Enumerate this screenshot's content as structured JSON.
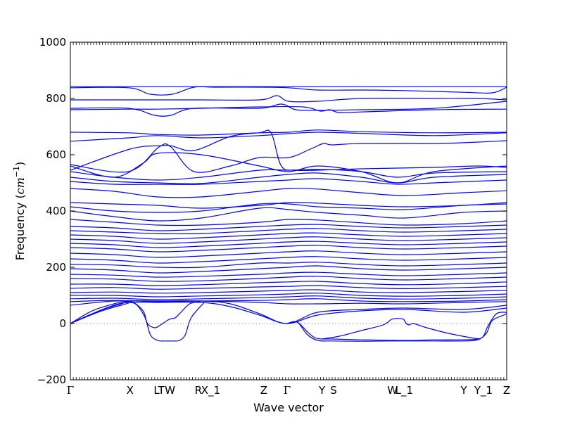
{
  "chart_data": {
    "type": "line",
    "xlabel": "Wave vector",
    "ylabel": "Frequency",
    "ylabel_unit_base": "cm",
    "ylabel_unit_exp": "−1",
    "ylim": [
      -200,
      1000
    ],
    "yticks": [
      -200,
      0,
      200,
      400,
      600,
      800,
      1000
    ],
    "xlim": [
      0,
      30
    ],
    "grid": false,
    "zero_line": {
      "y": 0,
      "style": "dotted"
    },
    "series_color": "#0000ff",
    "high_symmetry_points": [
      {
        "label": "Γ",
        "x": 0
      },
      {
        "label": "X",
        "x": 4.1
      },
      {
        "label": "LT",
        "x": 6.1
      },
      {
        "label": "W",
        "x": 6.85
      },
      {
        "label": "R",
        "x": 8.8
      },
      {
        "label": "X_1",
        "x": 9.65
      },
      {
        "label": "Z",
        "x": 13.3
      },
      {
        "label": "Γ",
        "x": 14.9
      },
      {
        "label": "Y",
        "x": 17.3
      },
      {
        "label": "S",
        "x": 18.1
      },
      {
        "label": "W",
        "x": 22.15
      },
      {
        "label": "L_1",
        "x": 22.95
      },
      {
        "label": "Y",
        "x": 27.05
      },
      {
        "label": "Y_1",
        "x": 28.4
      },
      {
        "label": "Z",
        "x": 30
      }
    ],
    "series": [
      {
        "x": [
          0,
          4,
          6,
          9,
          13,
          15,
          17,
          20,
          23,
          27,
          30
        ],
        "y": [
          842,
          842,
          842,
          842,
          842,
          842,
          842,
          842,
          842,
          842,
          842
        ]
      },
      {
        "x": [
          0,
          4,
          5.5,
          7,
          8.5,
          10,
          13,
          15,
          17,
          20,
          23,
          27,
          29,
          30
        ],
        "y": [
          838,
          838,
          815,
          815,
          840,
          840,
          840,
          838,
          830,
          830,
          828,
          822,
          820,
          840
        ]
      },
      {
        "x": [
          0,
          4,
          6,
          9,
          13,
          14.2,
          15,
          17,
          20,
          25,
          28,
          30
        ],
        "y": [
          795,
          795,
          795,
          795,
          795,
          810,
          790,
          790,
          800,
          800,
          800,
          795
        ]
      },
      {
        "x": [
          0,
          4,
          5.8,
          6.9,
          8.5,
          13,
          14.5,
          15.5,
          17,
          20,
          25,
          30
        ],
        "y": [
          765,
          765,
          740,
          740,
          765,
          765,
          780,
          760,
          758,
          760,
          765,
          790
        ]
      },
      {
        "x": [
          0,
          4,
          6,
          9,
          13,
          16,
          17.2,
          17.8,
          18.5,
          20,
          25,
          30
        ],
        "y": [
          760,
          762,
          762,
          765,
          770,
          770,
          755,
          760,
          750,
          752,
          760,
          762
        ]
      },
      {
        "x": [
          0,
          4,
          6,
          9,
          13,
          15,
          17,
          20,
          25,
          30
        ],
        "y": [
          680,
          678,
          672,
          670,
          678,
          680,
          688,
          682,
          678,
          680
        ]
      },
      {
        "x": [
          0,
          4,
          6,
          9,
          13,
          15,
          17,
          20,
          25,
          30
        ],
        "y": [
          648,
          660,
          668,
          660,
          668,
          675,
          680,
          676,
          668,
          678
        ]
      },
      {
        "x": [
          0,
          4.1,
          6.1,
          6.9,
          8.5,
          11,
          13,
          13.8,
          14.5,
          15.5,
          17,
          20,
          25,
          28,
          30
        ],
        "y": [
          545,
          620,
          632,
          632,
          615,
          665,
          678,
          678,
          560,
          545,
          545,
          550,
          555,
          560,
          555
        ]
      },
      {
        "x": [
          0,
          4,
          6.1,
          6.9,
          8.5,
          11,
          13,
          15,
          16.5,
          17.4,
          18,
          20,
          25,
          28,
          30
        ],
        "y": [
          565,
          540,
          628,
          628,
          540,
          560,
          590,
          590,
          620,
          640,
          635,
          640,
          640,
          645,
          650
        ]
      },
      {
        "x": [
          0,
          3,
          5,
          6,
          9,
          13,
          15,
          17,
          20,
          22.5,
          25,
          30
        ],
        "y": [
          560,
          520,
          570,
          605,
          600,
          560,
          540,
          560,
          540,
          500,
          540,
          560
        ]
      },
      {
        "x": [
          0,
          3,
          6,
          9,
          13,
          15,
          17,
          20,
          22.5,
          25,
          30
        ],
        "y": [
          540,
          520,
          510,
          520,
          545,
          545,
          548,
          540,
          520,
          535,
          540
        ]
      },
      {
        "x": [
          0,
          3,
          6,
          9,
          13,
          15,
          17,
          20,
          22.5,
          25,
          30
        ],
        "y": [
          520,
          505,
          500,
          498,
          520,
          530,
          535,
          520,
          500,
          520,
          530
        ]
      },
      {
        "x": [
          0,
          3,
          6,
          9,
          13,
          15,
          17,
          20,
          22.5,
          25,
          30
        ],
        "y": [
          505,
          495,
          495,
          495,
          505,
          510,
          515,
          505,
          495,
          500,
          510
        ]
      },
      {
        "x": [
          0,
          3,
          6,
          9,
          13,
          15,
          17,
          20,
          23,
          27,
          30
        ],
        "y": [
          480,
          470,
          450,
          450,
          470,
          480,
          478,
          465,
          455,
          465,
          472
        ]
      },
      {
        "x": [
          0,
          3,
          6,
          9,
          13,
          15,
          17,
          20,
          23,
          27,
          30
        ],
        "y": [
          430,
          425,
          420,
          410,
          420,
          430,
          428,
          420,
          415,
          420,
          430
        ]
      },
      {
        "x": [
          0,
          3,
          6,
          9,
          13,
          15,
          17,
          20,
          23,
          27,
          30
        ],
        "y": [
          415,
          400,
          395,
          400,
          425,
          425,
          415,
          410,
          405,
          420,
          425
        ]
      },
      {
        "x": [
          0,
          3,
          6,
          9,
          13,
          15,
          17,
          20,
          23,
          27,
          30
        ],
        "y": [
          400,
          380,
          365,
          375,
          410,
          405,
          395,
          385,
          375,
          395,
          400
        ]
      },
      {
        "x": [
          0,
          3,
          6,
          9,
          13,
          15,
          17,
          20,
          23,
          27,
          30
        ],
        "y": [
          370,
          360,
          350,
          350,
          360,
          370,
          368,
          358,
          350,
          355,
          365
        ]
      },
      {
        "x": [
          0,
          3,
          6,
          9,
          13,
          15,
          17,
          20,
          23,
          27,
          30
        ],
        "y": [
          345,
          340,
          330,
          335,
          345,
          350,
          352,
          345,
          340,
          345,
          350
        ]
      },
      {
        "x": [
          0,
          3,
          6,
          9,
          13,
          15,
          17,
          20,
          23,
          27,
          30
        ],
        "y": [
          330,
          325,
          320,
          320,
          330,
          335,
          338,
          330,
          325,
          330,
          335
        ]
      },
      {
        "x": [
          0,
          3,
          6,
          9,
          13,
          15,
          17,
          20,
          23,
          27,
          30
        ],
        "y": [
          315,
          310,
          300,
          305,
          315,
          320,
          322,
          315,
          310,
          315,
          320
        ]
      },
      {
        "x": [
          0,
          3,
          6,
          9,
          13,
          15,
          17,
          20,
          23,
          27,
          30
        ],
        "y": [
          300,
          295,
          285,
          290,
          300,
          305,
          308,
          300,
          295,
          300,
          305
        ]
      },
      {
        "x": [
          0,
          3,
          6,
          9,
          13,
          15,
          17,
          20,
          23,
          27,
          30
        ],
        "y": [
          285,
          280,
          270,
          275,
          285,
          290,
          292,
          285,
          280,
          285,
          290
        ]
      },
      {
        "x": [
          0,
          3,
          6,
          9,
          13,
          15,
          17,
          20,
          23,
          27,
          30
        ],
        "y": [
          270,
          265,
          255,
          260,
          270,
          275,
          278,
          270,
          265,
          270,
          275
        ]
      },
      {
        "x": [
          0,
          3,
          6,
          9,
          13,
          15,
          17,
          20,
          23,
          27,
          30
        ],
        "y": [
          250,
          245,
          235,
          240,
          250,
          255,
          258,
          250,
          245,
          250,
          255
        ]
      },
      {
        "x": [
          0,
          3,
          6,
          9,
          13,
          15,
          17,
          20,
          23,
          27,
          30
        ],
        "y": [
          230,
          225,
          215,
          220,
          230,
          235,
          238,
          230,
          225,
          230,
          235
        ]
      },
      {
        "x": [
          0,
          3,
          6,
          9,
          13,
          15,
          17,
          20,
          23,
          27,
          30
        ],
        "y": [
          210,
          208,
          200,
          200,
          215,
          215,
          218,
          210,
          205,
          210,
          215
        ]
      },
      {
        "x": [
          0,
          3,
          6,
          9,
          13,
          15,
          17,
          20,
          23,
          27,
          30
        ],
        "y": [
          195,
          190,
          180,
          185,
          195,
          200,
          205,
          195,
          190,
          195,
          200
        ]
      },
      {
        "x": [
          0,
          3,
          6,
          9,
          13,
          15,
          17,
          20,
          23,
          27,
          30
        ],
        "y": [
          175,
          172,
          165,
          168,
          175,
          180,
          182,
          175,
          170,
          175,
          180
        ]
      },
      {
        "x": [
          0,
          3,
          6,
          9,
          13,
          15,
          17,
          20,
          23,
          27,
          30
        ],
        "y": [
          160,
          158,
          150,
          152,
          160,
          165,
          168,
          160,
          155,
          160,
          165
        ]
      },
      {
        "x": [
          0,
          3,
          6,
          9,
          13,
          15,
          17,
          20,
          23,
          27,
          30
        ],
        "y": [
          140,
          140,
          135,
          138,
          145,
          148,
          150,
          142,
          138,
          142,
          148
        ]
      },
      {
        "x": [
          0,
          3,
          6,
          9,
          13,
          15,
          17,
          20,
          23,
          27,
          30
        ],
        "y": [
          125,
          128,
          122,
          125,
          130,
          132,
          135,
          128,
          124,
          128,
          132
        ]
      },
      {
        "x": [
          0,
          3,
          6,
          9,
          13,
          15,
          17,
          20,
          23,
          27,
          30
        ],
        "y": [
          110,
          112,
          108,
          110,
          115,
          118,
          120,
          112,
          110,
          114,
          118
        ]
      },
      {
        "x": [
          0,
          3,
          6,
          9,
          13,
          15,
          17,
          20,
          23,
          27,
          30
        ],
        "y": [
          100,
          100,
          95,
          98,
          102,
          105,
          108,
          100,
          97,
          100,
          105
        ]
      },
      {
        "x": [
          0,
          3,
          6,
          9,
          13,
          15,
          17,
          20,
          23,
          27,
          30
        ],
        "y": [
          88,
          90,
          85,
          88,
          92,
          95,
          98,
          90,
          87,
          90,
          95
        ]
      },
      {
        "x": [
          0,
          3,
          6,
          9,
          13,
          15,
          17,
          20,
          23,
          27,
          30
        ],
        "y": [
          78,
          82,
          78,
          80,
          82,
          85,
          88,
          80,
          78,
          80,
          85
        ]
      },
      {
        "x": [
          0,
          3,
          6,
          9,
          13,
          15,
          17,
          20,
          23,
          27,
          30
        ],
        "y": [
          65,
          80,
          80,
          80,
          75,
          70,
          70,
          72,
          70,
          75,
          78
        ]
      },
      {
        "x": [
          0,
          1.5,
          3,
          4,
          6,
          9,
          11,
          13,
          14.9,
          17,
          20,
          23,
          27,
          30
        ],
        "y": [
          0,
          45,
          70,
          80,
          80,
          80,
          70,
          35,
          0,
          40,
          50,
          55,
          50,
          65
        ]
      },
      {
        "x": [
          0,
          1.5,
          3,
          4,
          6,
          9,
          11,
          13,
          14.9,
          17,
          20,
          23,
          27,
          30
        ],
        "y": [
          0,
          35,
          65,
          75,
          75,
          75,
          60,
          30,
          0,
          30,
          45,
          50,
          40,
          55
        ]
      },
      {
        "x": [
          0,
          2,
          3.5,
          4.2,
          5,
          5.3,
          5.8,
          6.2,
          6.8,
          7.2,
          7.6,
          8.2,
          8.9
        ],
        "y": [
          0,
          45,
          70,
          78,
          45,
          0,
          -15,
          -5,
          15,
          20,
          40,
          70,
          78
        ]
      },
      {
        "x": [
          0,
          2,
          3.5,
          4.4,
          5.1,
          5.5,
          6,
          6.5,
          7,
          7.5,
          7.9,
          8.3,
          9.2
        ],
        "y": [
          0,
          42,
          65,
          72,
          25,
          -40,
          -60,
          -62,
          -62,
          -60,
          -40,
          20,
          75
        ]
      },
      {
        "x": [
          14.9,
          15.6,
          16.3,
          16.8,
          17.3,
          18,
          20,
          23,
          25,
          27,
          28,
          28.4,
          28.7,
          29.3,
          30
        ],
        "y": [
          0,
          5,
          -30,
          -50,
          -55,
          -55,
          -58,
          -60,
          -58,
          -58,
          -55,
          -45,
          -10,
          35,
          40
        ]
      },
      {
        "x": [
          14.9,
          15.6,
          16.3,
          17,
          18,
          20,
          22,
          23.5,
          25,
          27,
          28,
          28.6,
          29,
          29.8,
          30
        ],
        "y": [
          0,
          5,
          -40,
          -60,
          -62,
          -63,
          -62,
          -62,
          -62,
          -62,
          -58,
          -35,
          10,
          30,
          35
        ]
      },
      {
        "x": [
          17.3,
          18.5,
          20,
          21.5,
          22.1,
          22.6,
          22.9,
          23.1,
          23.3,
          23.6,
          24.5,
          26,
          27.5,
          28.2
        ],
        "y": [
          -55,
          -45,
          -25,
          -5,
          15,
          18,
          15,
          0,
          -5,
          0,
          -15,
          -35,
          -50,
          -55
        ]
      }
    ]
  }
}
